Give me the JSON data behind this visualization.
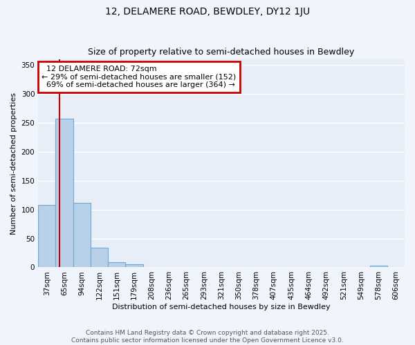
{
  "title": "12, DELAMERE ROAD, BEWDLEY, DY12 1JU",
  "subtitle": "Size of property relative to semi-detached houses in Bewdley",
  "xlabel": "Distribution of semi-detached houses by size in Bewdley",
  "ylabel": "Number of semi-detached properties",
  "categories": [
    "37sqm",
    "65sqm",
    "94sqm",
    "122sqm",
    "151sqm",
    "179sqm",
    "208sqm",
    "236sqm",
    "265sqm",
    "293sqm",
    "321sqm",
    "350sqm",
    "378sqm",
    "407sqm",
    "435sqm",
    "464sqm",
    "492sqm",
    "521sqm",
    "549sqm",
    "578sqm",
    "606sqm"
  ],
  "values": [
    108,
    257,
    112,
    34,
    9,
    5,
    0,
    0,
    0,
    0,
    0,
    0,
    0,
    0,
    0,
    0,
    0,
    0,
    0,
    3,
    0
  ],
  "bar_color": "#b8d0e8",
  "bar_edge_color": "#6aaad4",
  "background_color": "#e8eef8",
  "grid_color": "#ffffff",
  "fig_color": "#f0f4fc",
  "ylim": [
    0,
    360
  ],
  "yticks": [
    0,
    50,
    100,
    150,
    200,
    250,
    300,
    350
  ],
  "property_size": 72,
  "pct_smaller": 29,
  "pct_smaller_count": 152,
  "pct_larger": 69,
  "pct_larger_count": 364,
  "vline_color": "#cc0000",
  "annotation_box_color": "#cc0000",
  "footer_line1": "Contains HM Land Registry data © Crown copyright and database right 2025.",
  "footer_line2": "Contains public sector information licensed under the Open Government Licence v3.0.",
  "title_fontsize": 10,
  "subtitle_fontsize": 9,
  "axis_label_fontsize": 8,
  "tick_fontsize": 7.5,
  "annotation_fontsize": 8,
  "footer_fontsize": 6.5
}
